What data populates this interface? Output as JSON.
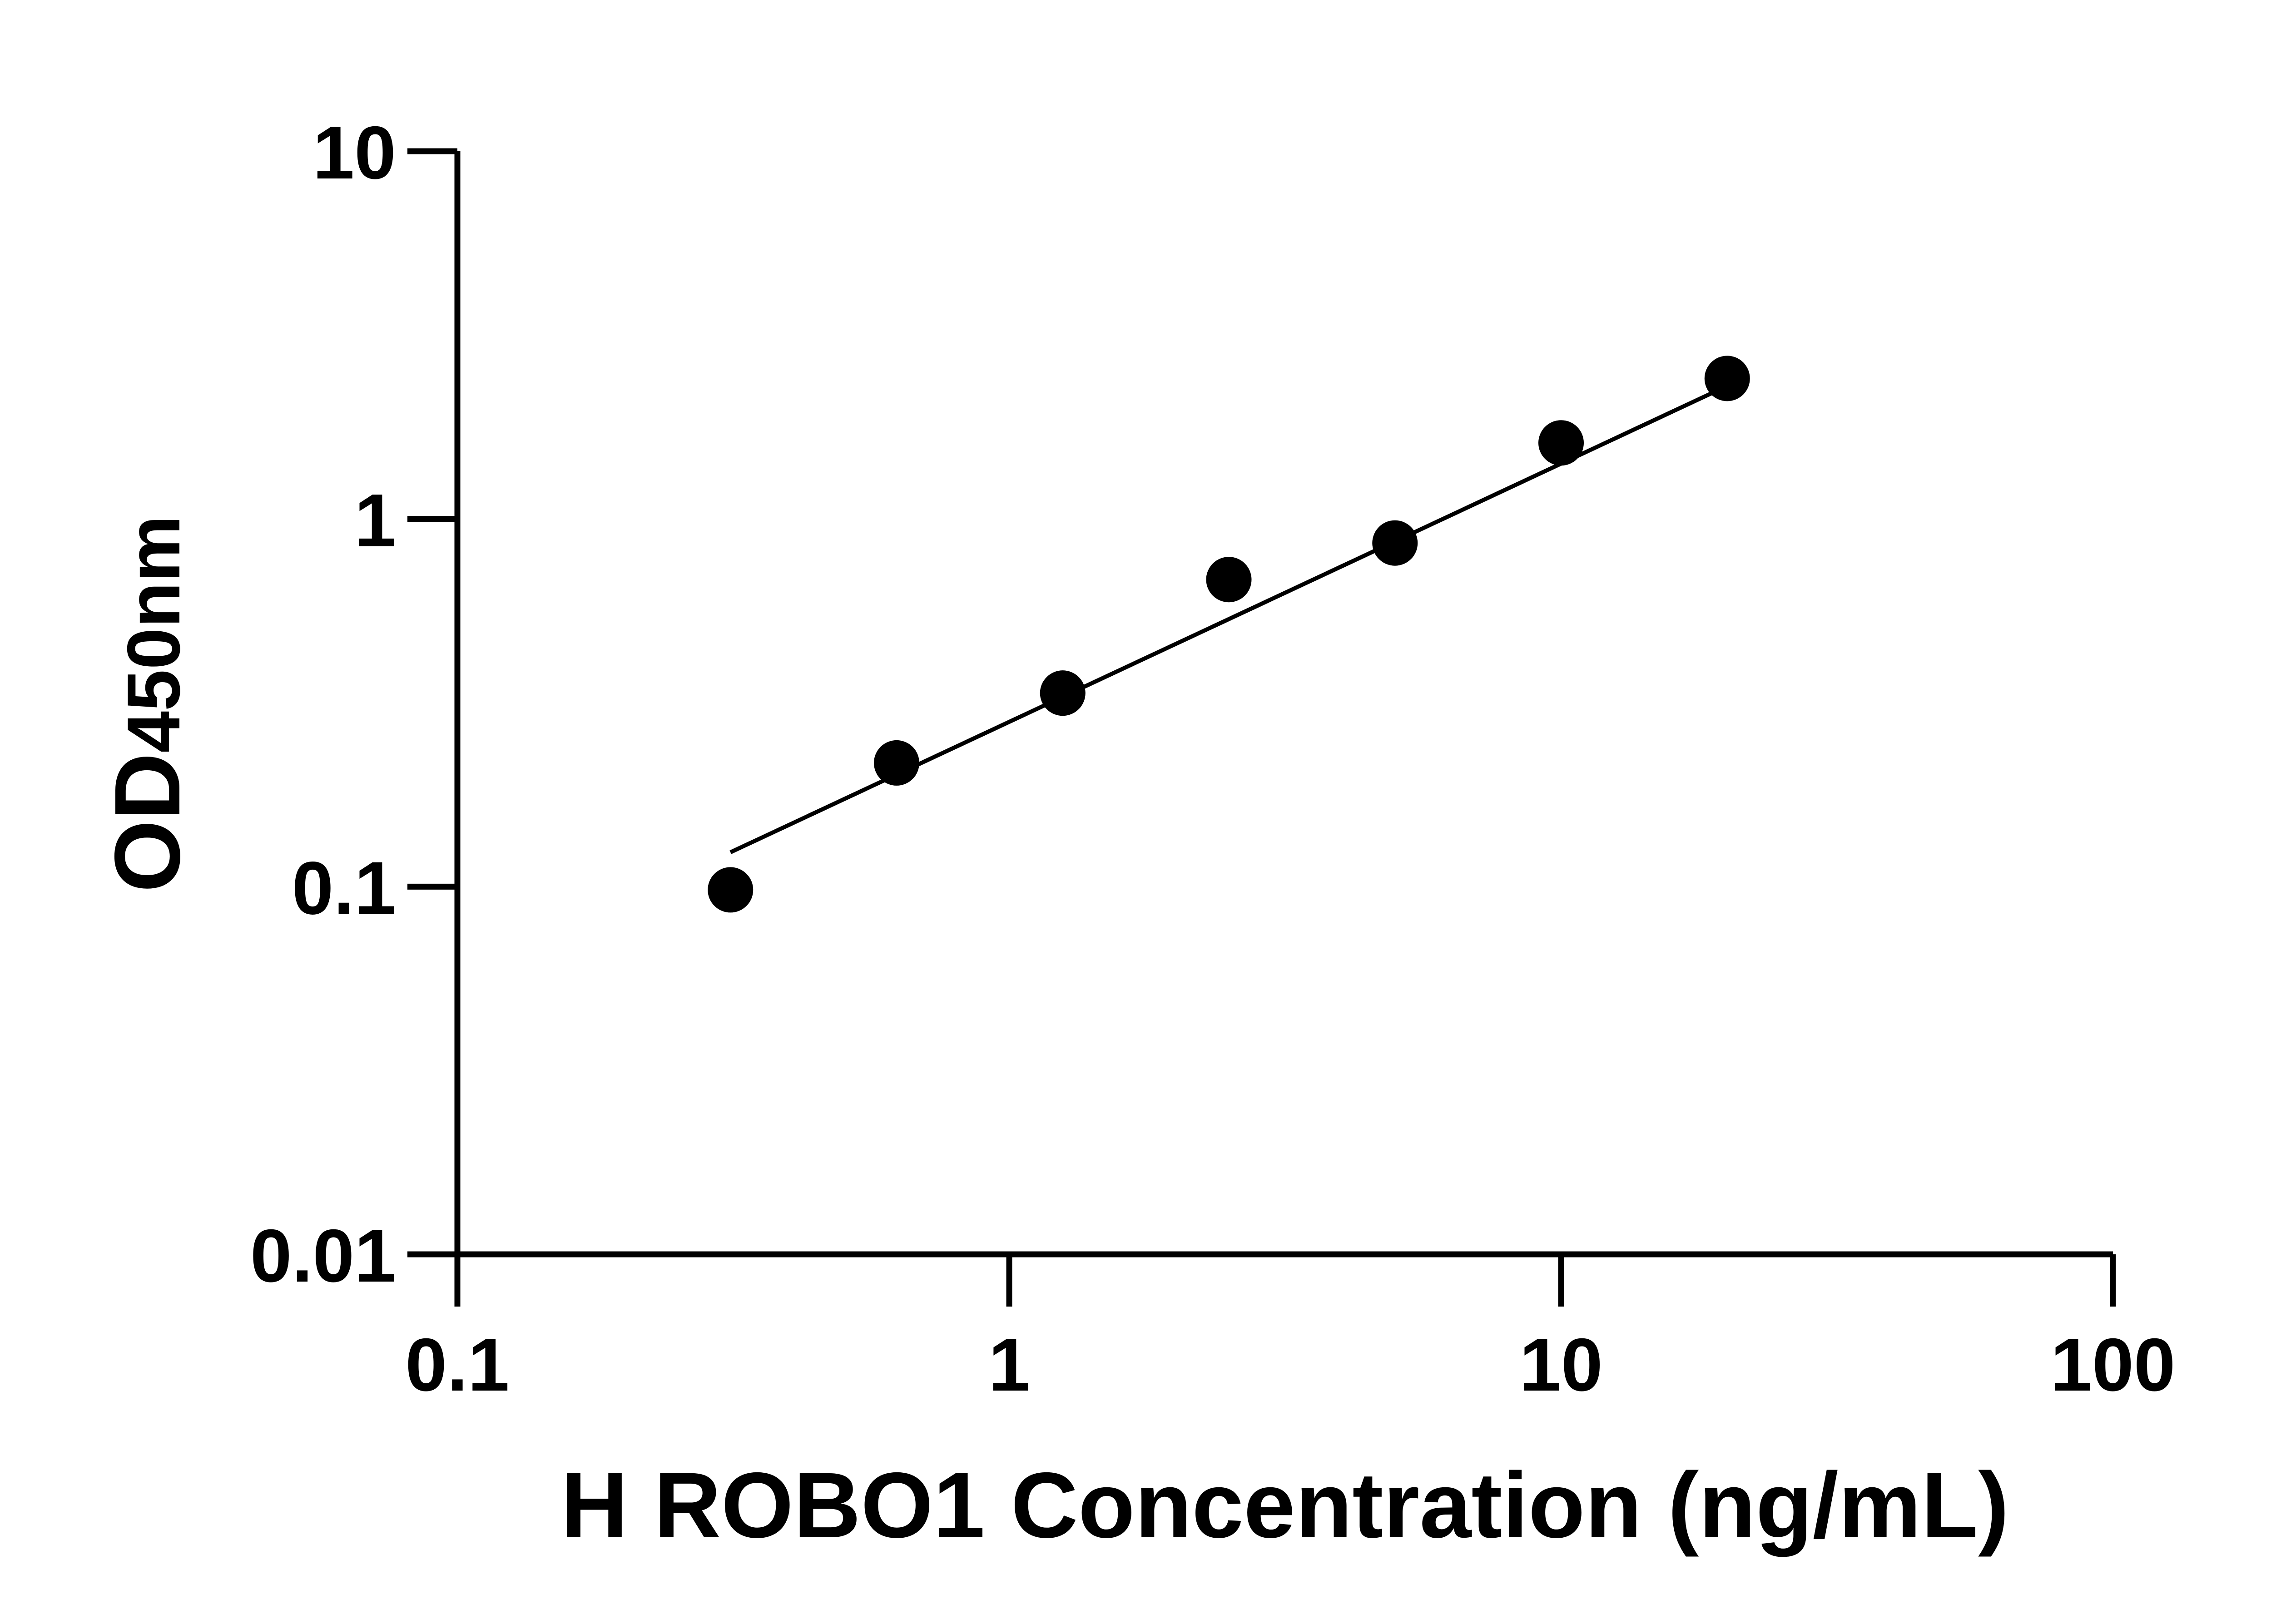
{
  "chart_data": {
    "type": "scatter",
    "title": "",
    "xlabel": "H ROBO1 Concentration (ng/mL)",
    "ylabel_main": "OD",
    "ylabel_sub": "450nm",
    "x_scale": "log",
    "y_scale": "log",
    "xlim": [
      0.1,
      100
    ],
    "ylim": [
      0.01,
      10
    ],
    "x_ticks": [
      "0.1",
      "1",
      "10",
      "100"
    ],
    "y_ticks": [
      "0.01",
      "0.1",
      "1",
      "10"
    ],
    "grid": false,
    "color": "#000000",
    "points": {
      "x": [
        0.3125,
        0.625,
        1.25,
        2.5,
        5,
        10,
        20
      ],
      "y": [
        0.098,
        0.217,
        0.336,
        0.684,
        0.86,
        1.61,
        2.41
      ]
    },
    "fit_line": {
      "x": [
        0.3125,
        20
      ],
      "y": [
        0.124,
        2.3
      ]
    }
  }
}
